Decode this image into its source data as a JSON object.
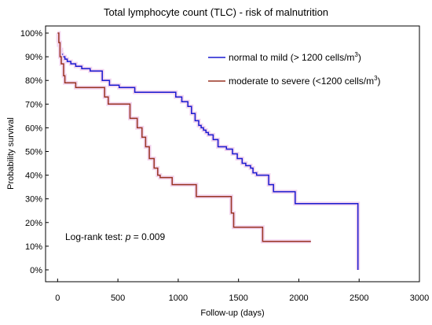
{
  "chart_data": {
    "type": "line",
    "subtype": "kaplan-meier-step",
    "title": "Total lymphocyte count  (TLC) - risk of malnutrition",
    "xlabel": "Follow-up (days)",
    "ylabel": "Probability survival",
    "xlim": [
      -100,
      3000
    ],
    "ylim": [
      -0.05,
      1.03
    ],
    "xticks": [
      0,
      500,
      1000,
      1500,
      2000,
      2500,
      3000
    ],
    "xtick_labels": [
      "0",
      "500",
      "1000",
      "1500",
      "2000",
      "2500",
      "3000"
    ],
    "yticks": [
      0,
      0.1,
      0.2,
      0.3,
      0.4,
      0.5,
      0.6,
      0.7,
      0.8,
      0.9,
      1.0
    ],
    "ytick_labels": [
      "0%",
      "10%",
      "20%",
      "30%",
      "40%",
      "50%",
      "60%",
      "70%",
      "80%",
      "90%",
      "100%"
    ],
    "grid": false,
    "legend_position": "top-right",
    "annotation": {
      "prefix": "Log-rank test: ",
      "variable": "p",
      "suffix": " = 0.009"
    },
    "series": [
      {
        "name_main": "normal to mild (> 1200 cells/m",
        "name_sup": "3",
        "name_end": ")",
        "color": "#1a1ad0",
        "x": [
          0,
          5,
          10,
          20,
          30,
          40,
          60,
          80,
          110,
          150,
          200,
          270,
          370,
          430,
          510,
          640,
          980,
          1030,
          1080,
          1110,
          1140,
          1170,
          1190,
          1210,
          1230,
          1250,
          1290,
          1330,
          1400,
          1450,
          1490,
          1530,
          1560,
          1600,
          1620,
          1650,
          1750,
          1790,
          1970,
          2490,
          2490
        ],
        "y": [
          1.0,
          0.97,
          0.95,
          0.93,
          0.91,
          0.9,
          0.89,
          0.88,
          0.87,
          0.86,
          0.85,
          0.84,
          0.8,
          0.78,
          0.77,
          0.75,
          0.73,
          0.71,
          0.69,
          0.66,
          0.63,
          0.61,
          0.6,
          0.59,
          0.58,
          0.57,
          0.55,
          0.52,
          0.51,
          0.49,
          0.47,
          0.45,
          0.44,
          0.43,
          0.41,
          0.4,
          0.36,
          0.33,
          0.28,
          0.28,
          0.0
        ]
      },
      {
        "name_main": "moderate to severe (<1200 cells/m",
        "name_sup": "3",
        "name_end": ")",
        "color": "#993322",
        "x": [
          0,
          10,
          20,
          30,
          50,
          60,
          150,
          390,
          420,
          600,
          660,
          700,
          730,
          760,
          800,
          830,
          850,
          950,
          1150,
          1440,
          1460,
          1700,
          2100
        ],
        "y": [
          1.0,
          0.96,
          0.9,
          0.87,
          0.82,
          0.79,
          0.77,
          0.73,
          0.7,
          0.64,
          0.6,
          0.56,
          0.52,
          0.47,
          0.43,
          0.4,
          0.39,
          0.36,
          0.31,
          0.24,
          0.18,
          0.12,
          0.12
        ]
      }
    ]
  }
}
